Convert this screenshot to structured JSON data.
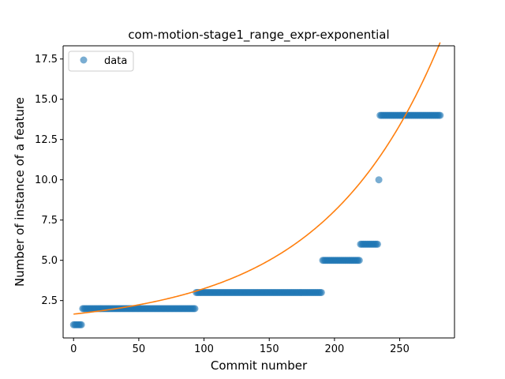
{
  "chart_data": {
    "type": "scatter",
    "title": "com-motion-stage1_range_expr-exponential",
    "xlabel": "Commit number",
    "ylabel": "Number of instance of a feature",
    "xlim": [
      -8,
      292
    ],
    "ylim": [
      0.18,
      18.32
    ],
    "x_ticks": [
      0,
      50,
      100,
      150,
      200,
      250
    ],
    "y_ticks": [
      2.5,
      5.0,
      7.5,
      10.0,
      12.5,
      15.0,
      17.5
    ],
    "x_tick_labels": [
      "0",
      "50",
      "100",
      "150",
      "200",
      "250"
    ],
    "y_tick_labels": [
      "2.5",
      "5.0",
      "7.5",
      "10.0",
      "12.5",
      "15.0",
      "17.5"
    ],
    "legend": {
      "position": "upper-left",
      "entries": [
        "data"
      ]
    },
    "grid": false,
    "series": [
      {
        "name": "data",
        "kind": "points",
        "color": "#1f77b4",
        "segments": [
          {
            "x_start": 0,
            "x_end": 6,
            "y": 1
          },
          {
            "x_start": 7,
            "x_end": 93,
            "y": 2
          },
          {
            "x_start": 94,
            "x_end": 190,
            "y": 3
          },
          {
            "x_start": 191,
            "x_end": 219,
            "y": 5
          },
          {
            "x_start": 220,
            "x_end": 233,
            "y": 6
          },
          {
            "x_start": 234,
            "x_end": 234,
            "y": 10
          },
          {
            "x_start": 235,
            "x_end": 281,
            "y": 14
          }
        ]
      },
      {
        "kind": "fit-curve",
        "color": "#ff7f0e",
        "model": "exponential",
        "a": 0.78,
        "b": 0.0111,
        "c": 0.88,
        "x_range": [
          0,
          281
        ]
      }
    ]
  }
}
